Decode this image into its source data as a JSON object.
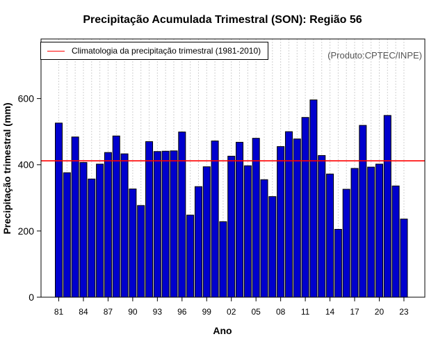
{
  "chart_data": {
    "type": "bar",
    "title": "Precipitação Acumulada Trimestral (SON): Região 56",
    "xlabel": "Ano",
    "ylabel": "Precipitação trimestral (mm)",
    "credit": "(Produto:CPTEC/INPE)",
    "ylim": [
      0,
      780
    ],
    "yticks": [
      0,
      200,
      400,
      600
    ],
    "categories": [
      "81",
      "82",
      "83",
      "84",
      "85",
      "86",
      "87",
      "88",
      "89",
      "90",
      "91",
      "92",
      "93",
      "94",
      "95",
      "96",
      "97",
      "98",
      "99",
      "00",
      "01",
      "02",
      "03",
      "04",
      "05",
      "06",
      "07",
      "08",
      "09",
      "10",
      "11",
      "12",
      "13",
      "14",
      "15",
      "16",
      "17",
      "18",
      "19",
      "20",
      "21",
      "22",
      "23"
    ],
    "values": [
      526,
      376,
      484,
      407,
      357,
      402,
      437,
      487,
      433,
      327,
      277,
      470,
      440,
      441,
      442,
      499,
      248,
      334,
      394,
      472,
      228,
      426,
      468,
      397,
      480,
      355,
      304,
      455,
      500,
      478,
      543,
      596,
      428,
      372,
      205,
      326,
      389,
      519,
      393,
      402,
      549,
      336,
      236
    ],
    "xtick_labels": [
      "81",
      "84",
      "87",
      "90",
      "93",
      "96",
      "99",
      "02",
      "05",
      "08",
      "11",
      "14",
      "17",
      "20",
      "23"
    ],
    "reference_line": {
      "label": "Climatologia da precipitação trimestral (1981-2010)",
      "value": 412
    },
    "colors": {
      "bar_fill": "#0000cd",
      "bar_stroke": "#000000",
      "reference_line": "#ff0000",
      "grid": "#d0d0d0"
    },
    "grid": true,
    "legend_position": "top-left"
  }
}
